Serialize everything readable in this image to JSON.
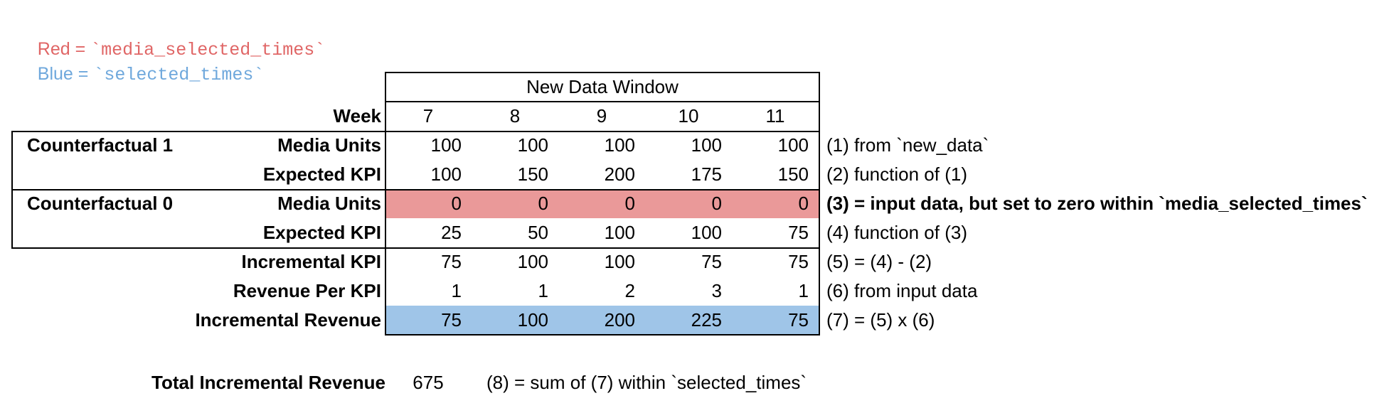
{
  "legend": {
    "red_label": "Red",
    "blue_label": "Blue",
    "eq": " = ",
    "red_code": "`media_selected_times`",
    "blue_code": "`selected_times`"
  },
  "colors": {
    "red_text": "#e06666",
    "red_fill": "#ea9999",
    "blue_text": "#6fa8dc",
    "blue_fill": "#9fc5e8",
    "border": "#000000"
  },
  "table": {
    "header": "New Data Window",
    "week_label": "Week",
    "weeks": [
      "7",
      "8",
      "9",
      "10",
      "11"
    ],
    "groups": [
      {
        "name": "Counterfactual 1"
      },
      {
        "name": "Counterfactual 0"
      }
    ],
    "rows": [
      {
        "label": "Media Units",
        "values": [
          "100",
          "100",
          "100",
          "100",
          "100"
        ],
        "note": "(1) from `new_data`",
        "highlight": null,
        "note_bold": false
      },
      {
        "label": "Expected KPI",
        "values": [
          "100",
          "150",
          "200",
          "175",
          "150"
        ],
        "note": "(2) function of (1)",
        "highlight": null,
        "note_bold": false
      },
      {
        "label": "Media Units",
        "values": [
          "0",
          "0",
          "0",
          "0",
          "0"
        ],
        "note": "(3) = input data, but set to zero within `media_selected_times`",
        "highlight": "red",
        "note_bold": true
      },
      {
        "label": "Expected KPI",
        "values": [
          "25",
          "50",
          "100",
          "100",
          "75"
        ],
        "note": "(4) function of (3)",
        "highlight": null,
        "note_bold": false
      },
      {
        "label": "Incremental KPI",
        "values": [
          "75",
          "100",
          "100",
          "75",
          "75"
        ],
        "note": "(5) = (4) - (2)",
        "highlight": null,
        "note_bold": false
      },
      {
        "label": "Revenue Per KPI",
        "values": [
          "1",
          "1",
          "2",
          "3",
          "1"
        ],
        "note": "(6) from input data",
        "highlight": null,
        "note_bold": false
      },
      {
        "label": "Incremental Revenue",
        "values": [
          "75",
          "100",
          "200",
          "225",
          "75"
        ],
        "note": "(7) = (5) x (6)",
        "highlight": "blue",
        "note_bold": false
      }
    ]
  },
  "total": {
    "label": "Total Incremental Revenue",
    "value": "675",
    "note": "(8) = sum of (7) within `selected_times`"
  }
}
